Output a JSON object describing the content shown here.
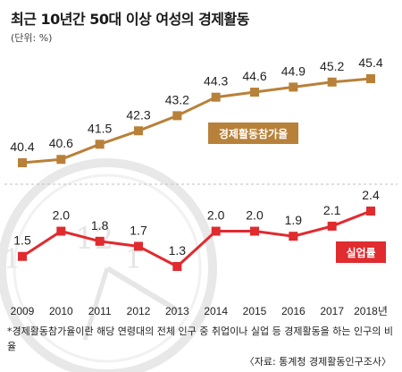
{
  "chart_data": {
    "type": "line",
    "title": "최근 10년간 50대 이상 여성의 경제활동",
    "unit": "(단위: %)",
    "x": [
      "2009",
      "2010",
      "2011",
      "2012",
      "2013",
      "2014",
      "2015",
      "2016",
      "2017",
      "2018년"
    ],
    "series": [
      {
        "name": "경제활동참가율",
        "values": [
          40.4,
          40.6,
          41.5,
          42.3,
          43.2,
          44.3,
          44.6,
          44.9,
          45.2,
          45.4
        ],
        "labels": [
          "40.4",
          "40.6",
          "41.5",
          "42.3",
          "43.2",
          "44.3",
          "44.6",
          "44.9",
          "45.2",
          "45.4"
        ],
        "color": "#b8813a"
      },
      {
        "name": "실업률",
        "values": [
          1.5,
          2.0,
          1.8,
          1.7,
          1.3,
          2.0,
          2.0,
          1.9,
          2.1,
          2.4
        ],
        "labels": [
          "1.5",
          "2.0",
          "1.8",
          "1.7",
          "1.3",
          "2.0",
          "2.0",
          "1.9",
          "2.1",
          "2.4"
        ],
        "color": "#e02b2f"
      }
    ],
    "grid": false,
    "footnote": "*경제활동참가율이란 해당 연령대의 전체 인구 중 취업이나 실업 등 경제활동을 하는 인구의 비율",
    "source": "〈자료: 통계청 경제활동인구조사〉"
  }
}
